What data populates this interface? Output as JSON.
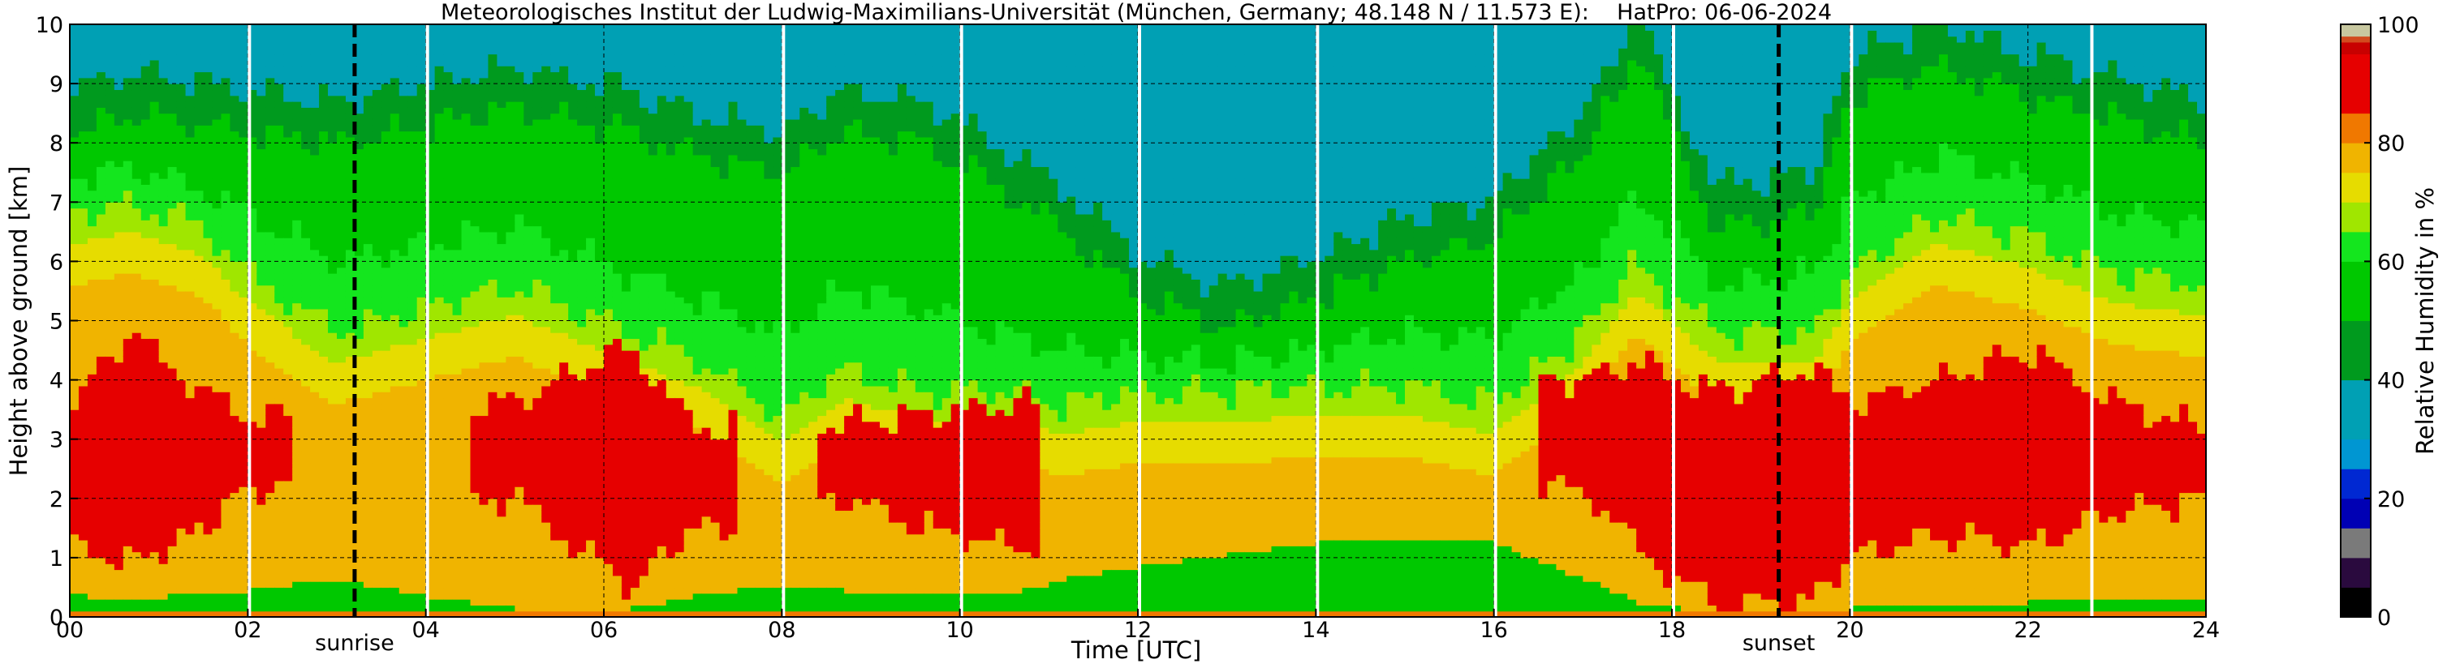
{
  "chart_data": {
    "type": "heatmap",
    "title": "Meteorologisches Institut der Ludwig-Maximilians-Universität (München, Germany; 48.148 N / 11.573 E):    HatPro: 06-06-2024",
    "xlabel": "Time [UTC]",
    "ylabel": "Height above ground [km]",
    "xlim": [
      0,
      24
    ],
    "ylim": [
      0,
      10
    ],
    "x_ticks": [
      "00",
      "02",
      "04",
      "06",
      "08",
      "10",
      "12",
      "14",
      "16",
      "18",
      "20",
      "22",
      "24"
    ],
    "y_ticks": [
      "0",
      "1",
      "2",
      "3",
      "4",
      "5",
      "6",
      "7",
      "8",
      "9",
      "10"
    ],
    "grid": true,
    "colorbar": {
      "label": "Relative Humidity in %",
      "ticks": [
        "0",
        "20",
        "40",
        "60",
        "80",
        "100"
      ],
      "range": [
        0,
        100
      ],
      "bands": [
        {
          "from": 0,
          "to": 5,
          "color": "#000000"
        },
        {
          "from": 5,
          "to": 10,
          "color": "#2a0a3e"
        },
        {
          "from": 10,
          "to": 15,
          "color": "#7a7a7a"
        },
        {
          "from": 15,
          "to": 20,
          "color": "#0000b4"
        },
        {
          "from": 20,
          "to": 25,
          "color": "#0028d2"
        },
        {
          "from": 25,
          "to": 30,
          "color": "#0096d2"
        },
        {
          "from": 30,
          "to": 40,
          "color": "#00a0b4"
        },
        {
          "from": 40,
          "to": 50,
          "color": "#009a1e"
        },
        {
          "from": 50,
          "to": 60,
          "color": "#00c800"
        },
        {
          "from": 60,
          "to": 65,
          "color": "#14e61e"
        },
        {
          "from": 65,
          "to": 70,
          "color": "#a0e600"
        },
        {
          "from": 70,
          "to": 75,
          "color": "#e6dc00"
        },
        {
          "from": 75,
          "to": 80,
          "color": "#f0b400"
        },
        {
          "from": 80,
          "to": 85,
          "color": "#f07800"
        },
        {
          "from": 85,
          "to": 95,
          "color": "#e60000"
        },
        {
          "from": 95,
          "to": 97,
          "color": "#c80000"
        },
        {
          "from": 97,
          "to": 98,
          "color": "#d24b1e"
        },
        {
          "from": 98,
          "to": 100,
          "color": "#c8c8a0"
        }
      ]
    },
    "scan_breaks_utc": [
      2.0,
      4.0,
      8.0,
      10.0,
      12.0,
      14.0,
      16.0,
      18.0,
      20.0,
      22.7
    ],
    "events": [
      {
        "label": "sunrise",
        "time_utc": 3.2
      },
      {
        "label": "sunset",
        "time_utc": 19.2
      }
    ],
    "profiles": [
      {
        "time": 0.0,
        "h70": 6.8,
        "h60": 7.4,
        "h50": 8.2,
        "red_bottom": 1.2,
        "red_top": 3.6,
        "surface_green": 0.35
      },
      {
        "time": 0.7,
        "h70": 7.0,
        "h60": 7.6,
        "h50": 8.5,
        "red_bottom": 0.9,
        "red_top": 4.8,
        "surface_green": 0.2
      },
      {
        "time": 1.5,
        "h70": 6.6,
        "h60": 7.2,
        "h50": 8.3,
        "red_bottom": 1.5,
        "red_top": 3.8,
        "surface_green": 0.4
      },
      {
        "time": 2.0,
        "h70": 5.8,
        "h60": 6.8,
        "h50": 8.2,
        "red_bottom": 2.2,
        "red_top": 3.4,
        "surface_green": 0.4
      },
      {
        "time": 3.0,
        "h70": 4.8,
        "h60": 6.0,
        "h50": 8.0,
        "red_bottom": 0,
        "red_top": 0,
        "surface_green": 0.6
      },
      {
        "time": 4.0,
        "h70": 5.2,
        "h60": 6.3,
        "h50": 8.3,
        "red_bottom": 0,
        "red_top": 0,
        "surface_green": 0.3
      },
      {
        "time": 5.0,
        "h70": 5.6,
        "h60": 6.6,
        "h50": 8.6,
        "red_bottom": 2.0,
        "red_top": 3.6,
        "surface_green": 0.1
      },
      {
        "time": 6.3,
        "h70": 4.8,
        "h60": 5.8,
        "h50": 8.2,
        "red_bottom": 0.5,
        "red_top": 4.6,
        "surface_green": 0.1
      },
      {
        "time": 7.0,
        "h70": 4.4,
        "h60": 5.4,
        "h50": 7.8,
        "red_bottom": 1.5,
        "red_top": 3.2,
        "surface_green": 0.3
      },
      {
        "time": 8.0,
        "h70": 3.4,
        "h60": 4.8,
        "h50": 7.5,
        "red_bottom": 0,
        "red_top": 0,
        "surface_green": 0.5
      },
      {
        "time": 8.7,
        "h70": 4.2,
        "h60": 5.6,
        "h50": 8.2,
        "red_bottom": 2.0,
        "red_top": 3.3,
        "surface_green": 0.4
      },
      {
        "time": 9.6,
        "h70": 3.8,
        "h60": 5.2,
        "h50": 8.0,
        "red_bottom": 1.5,
        "red_top": 3.4,
        "surface_green": 0.4
      },
      {
        "time": 10.5,
        "h70": 3.8,
        "h60": 4.8,
        "h50": 7.2,
        "red_bottom": 1.2,
        "red_top": 3.6,
        "surface_green": 0.3
      },
      {
        "time": 11.2,
        "h70": 3.6,
        "h60": 4.5,
        "h50": 6.5,
        "red_bottom": 0,
        "red_top": 0,
        "surface_green": 0.6
      },
      {
        "time": 12.0,
        "h70": 3.8,
        "h60": 4.4,
        "h50": 5.4,
        "red_bottom": 0,
        "red_top": 0,
        "surface_green": 0.8
      },
      {
        "time": 13.0,
        "h70": 3.8,
        "h60": 4.3,
        "h50": 4.9,
        "red_bottom": 0,
        "red_top": 0,
        "surface_green": 1.0
      },
      {
        "time": 14.0,
        "h70": 3.9,
        "h60": 4.5,
        "h50": 5.4,
        "red_bottom": 0,
        "red_top": 0,
        "surface_green": 1.2
      },
      {
        "time": 15.0,
        "h70": 3.9,
        "h60": 4.8,
        "h50": 6.0,
        "red_bottom": 0,
        "red_top": 0,
        "surface_green": 1.3
      },
      {
        "time": 16.0,
        "h70": 3.6,
        "h60": 4.7,
        "h50": 6.4,
        "red_bottom": 0,
        "red_top": 0,
        "surface_green": 1.2
      },
      {
        "time": 17.0,
        "h70": 4.8,
        "h60": 5.8,
        "h50": 7.8,
        "red_bottom": 2.2,
        "red_top": 4.0,
        "surface_green": 0.6
      },
      {
        "time": 17.6,
        "h70": 6.0,
        "h60": 7.2,
        "h50": 9.5,
        "red_bottom": 1.2,
        "red_top": 4.3,
        "surface_green": 0.2
      },
      {
        "time": 18.5,
        "h70": 4.8,
        "h60": 5.6,
        "h50": 6.6,
        "red_bottom": 0.2,
        "red_top": 3.8,
        "surface_green": 0.0
      },
      {
        "time": 19.6,
        "h70": 4.8,
        "h60": 5.8,
        "h50": 6.8,
        "red_bottom": 0.3,
        "red_top": 4.2,
        "surface_green": 0.0
      },
      {
        "time": 20.0,
        "h70": 5.8,
        "h60": 7.0,
        "h50": 8.8,
        "red_bottom": 1.0,
        "red_top": 3.6,
        "surface_green": 0.1
      },
      {
        "time": 21.0,
        "h70": 6.8,
        "h60": 7.8,
        "h50": 9.3,
        "red_bottom": 1.4,
        "red_top": 4.0,
        "surface_green": 0.2
      },
      {
        "time": 22.0,
        "h70": 6.4,
        "h60": 7.4,
        "h50": 8.8,
        "red_bottom": 1.2,
        "red_top": 4.5,
        "surface_green": 0.2
      },
      {
        "time": 23.0,
        "h70": 5.8,
        "h60": 6.8,
        "h50": 8.4,
        "red_bottom": 1.8,
        "red_top": 3.6,
        "surface_green": 0.3
      },
      {
        "time": 24.0,
        "h70": 5.6,
        "h60": 6.6,
        "h50": 8.0,
        "red_bottom": 2.0,
        "red_top": 3.2,
        "surface_green": 0.3
      }
    ]
  }
}
